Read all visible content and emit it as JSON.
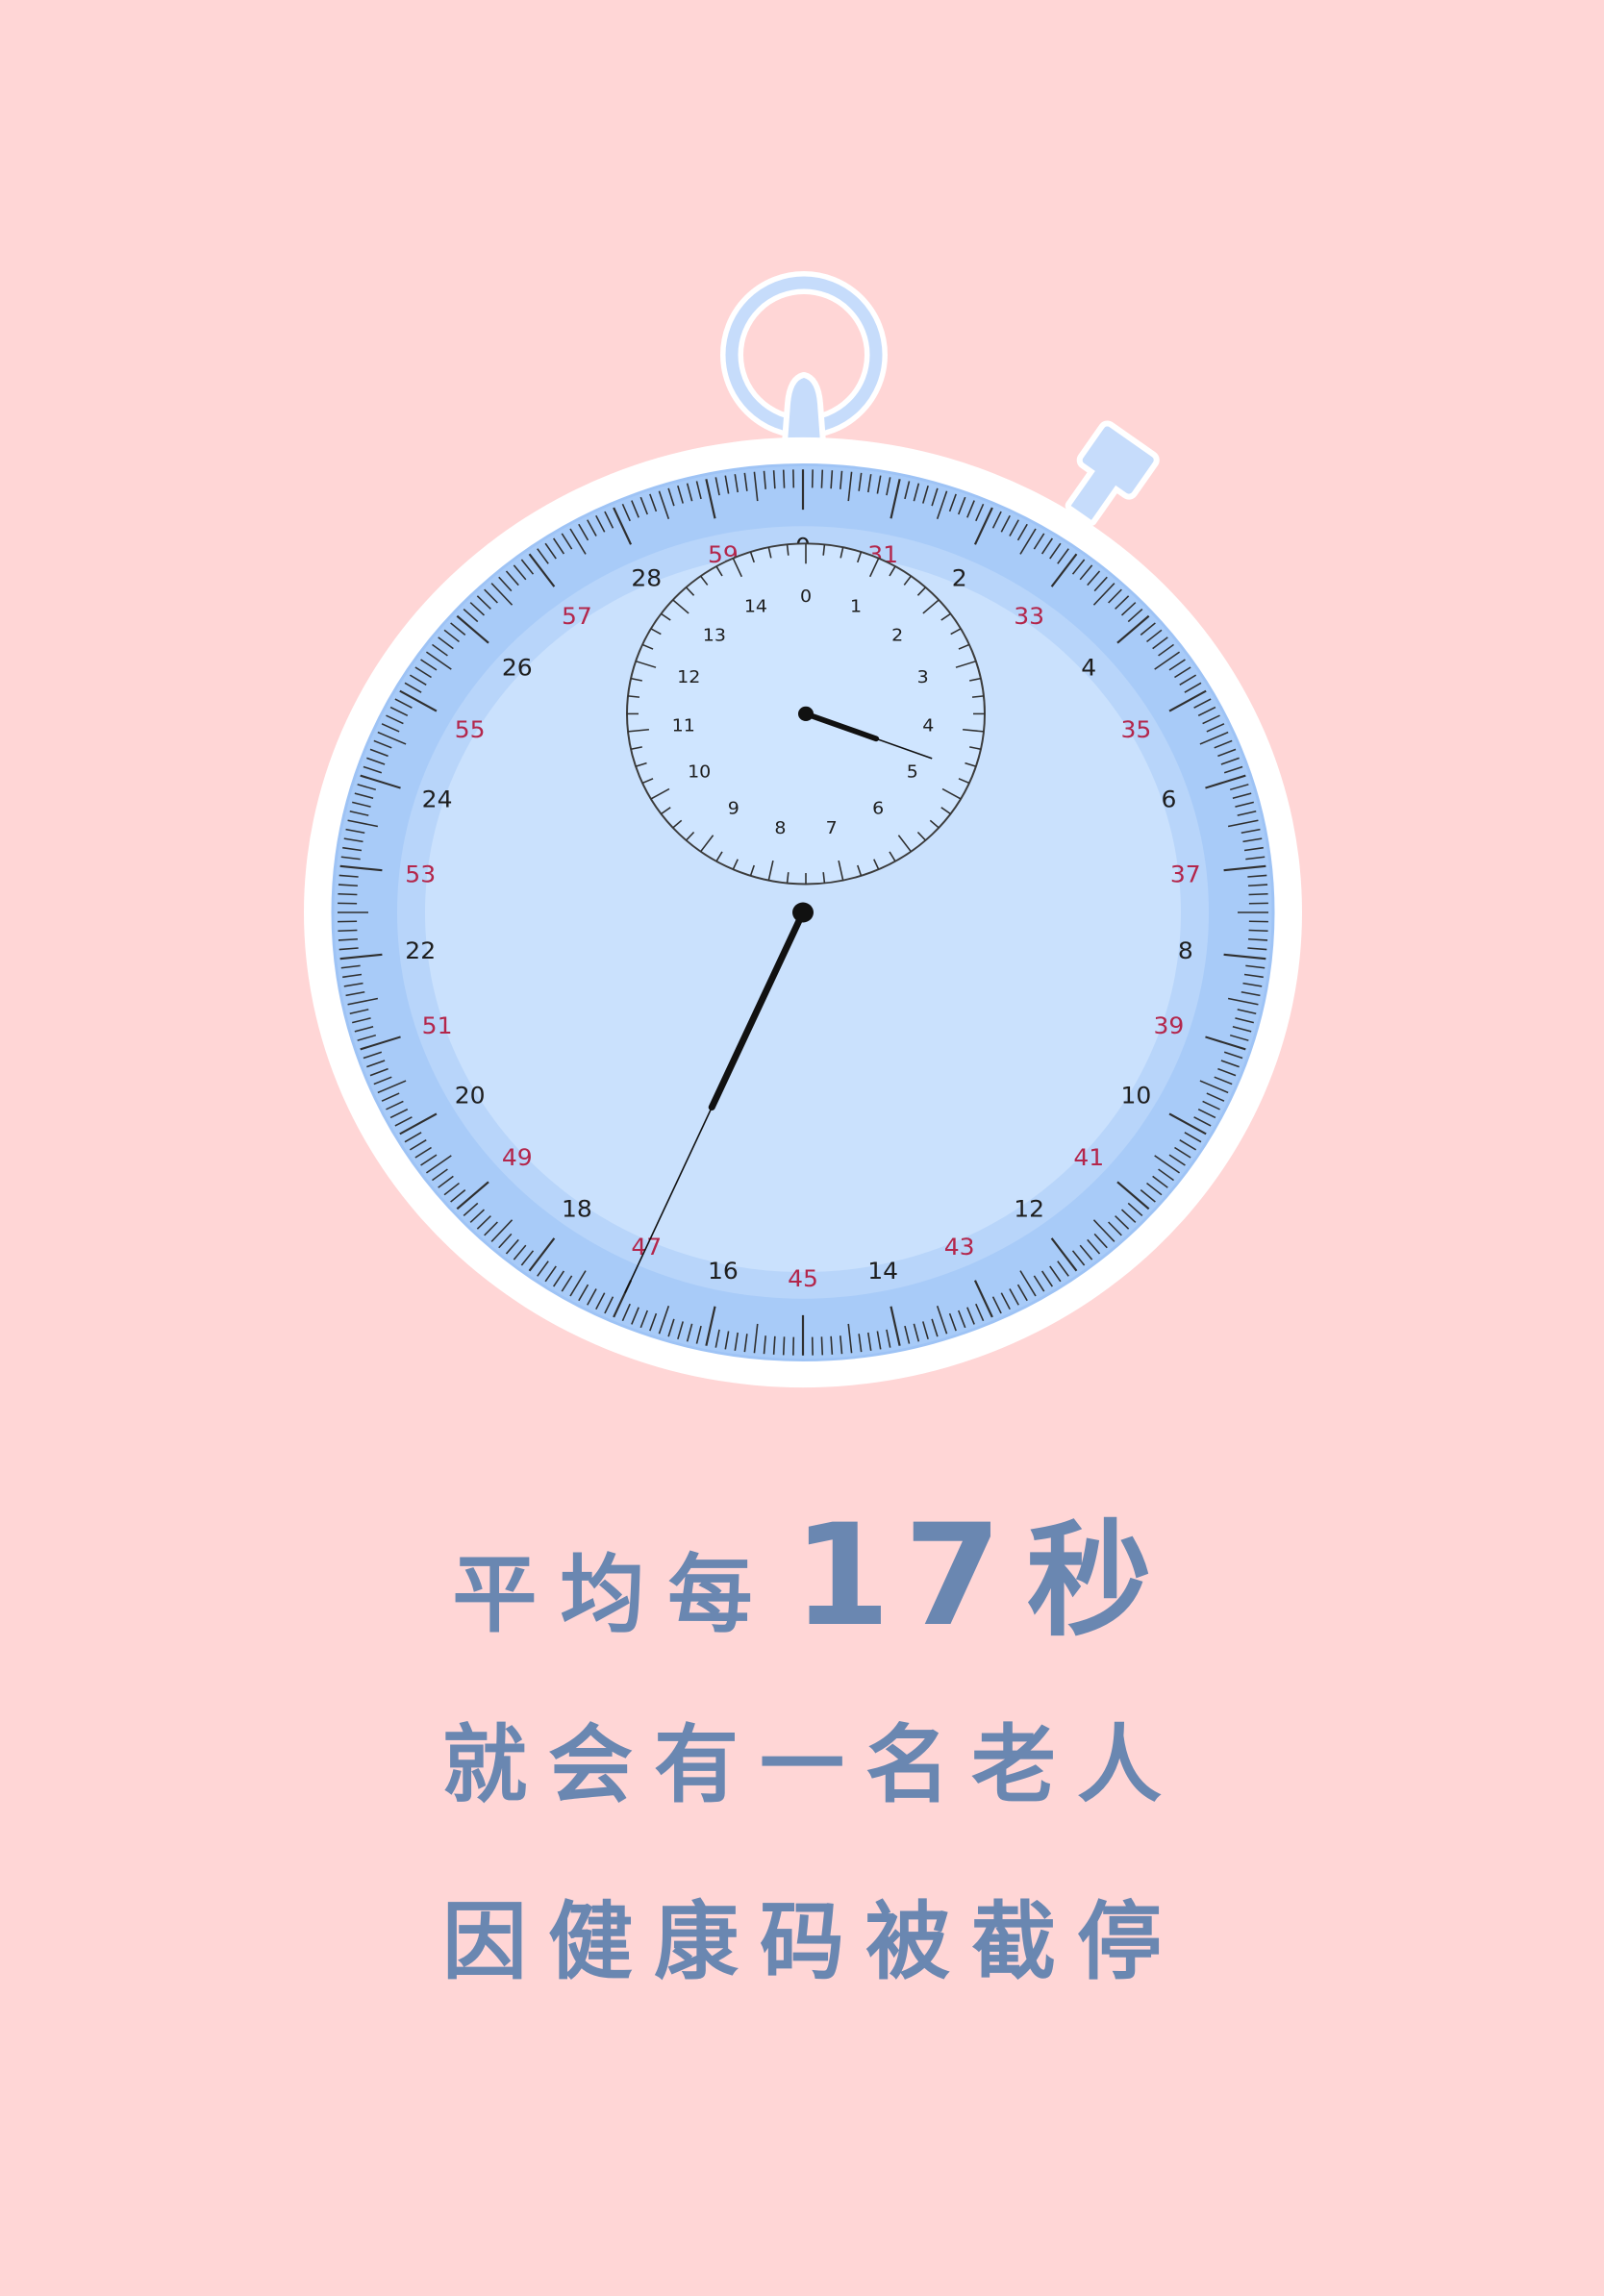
{
  "poster": {
    "background_color": "#FFD6D6"
  },
  "stopwatch": {
    "colors": {
      "case": "#FFFFFF",
      "crown": "#C6DCFB",
      "bezel": "#A8CBF8",
      "bezel_edge": "#9EC3F5",
      "band": "#B8D5FA",
      "face": "#CAE1FD",
      "sub_face": "#CFE5FF",
      "sub_rim": "#3C3C3C",
      "tick": "#2F2F2F",
      "label_black": "#1E1E1E",
      "label_red": "#B3264B",
      "hand": "#111111"
    },
    "outer_dial": {
      "black_labels": [
        "0",
        "2",
        "4",
        "6",
        "8",
        "10",
        "12",
        "14",
        "16",
        "18",
        "20",
        "22",
        "24",
        "26",
        "28"
      ],
      "red_labels": [
        "31",
        "33",
        "35",
        "37",
        "39",
        "41",
        "43",
        "45",
        "47",
        "49",
        "51",
        "53",
        "55",
        "57",
        "59"
      ]
    },
    "sub_dial": {
      "labels": [
        "0",
        "1",
        "2",
        "3",
        "4",
        "5",
        "6",
        "7",
        "8",
        "9",
        "10",
        "11",
        "12",
        "13",
        "14"
      ]
    },
    "hands": {
      "second_hand_seconds": 17,
      "sub_dial_hand_reading": 4.6
    }
  },
  "headline": {
    "color": "#6A87B1",
    "line1": {
      "prefix": "平均每",
      "number": "17",
      "unit": "秒"
    },
    "line2": "就会有一名老人",
    "line3": "因健康码被截停"
  }
}
